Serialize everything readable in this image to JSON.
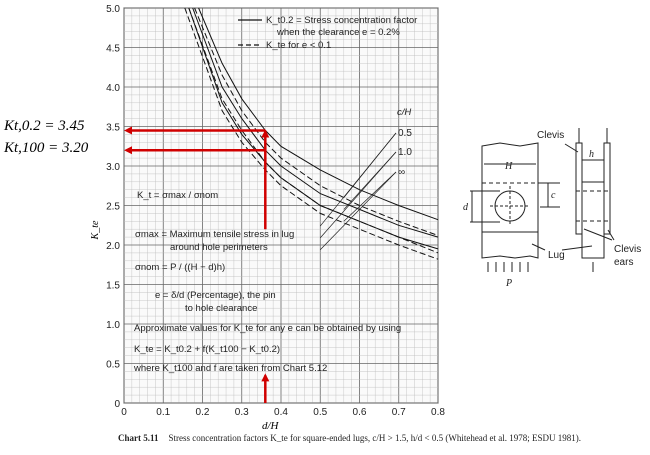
{
  "chart_data": {
    "type": "line",
    "xlabel": "d/H",
    "ylabel": "K_te",
    "xlim": [
      0,
      0.8
    ],
    "ylim": [
      0,
      5.0
    ],
    "x_ticks": [
      "0",
      "0.1",
      "0.2",
      "0.3",
      "0.4",
      "0.5",
      "0.6",
      "0.7",
      "0.8"
    ],
    "y_ticks": [
      "0",
      "0.5",
      "1.0",
      "1.5",
      "2.0",
      "2.5",
      "3.0",
      "3.5",
      "4.0",
      "4.5",
      "5.0"
    ],
    "grid": true,
    "legend": {
      "placement": "top-right",
      "solid": "K_t0.2 = Stress concentration factor",
      "solid_line2": "when the clearance e = 0.2%",
      "dashed": "K_te for e < 0.1"
    },
    "param_label": "c/H",
    "series": [
      {
        "name": "0.5",
        "style": "solid",
        "x": [
          0.19,
          0.25,
          0.3,
          0.36,
          0.4,
          0.5,
          0.6,
          0.7,
          0.8
        ],
        "y": [
          5.0,
          4.3,
          3.85,
          3.45,
          3.25,
          2.95,
          2.7,
          2.5,
          2.32
        ]
      },
      {
        "name": "1.0",
        "style": "solid",
        "x": [
          0.175,
          0.25,
          0.3,
          0.36,
          0.4,
          0.5,
          0.6,
          0.7,
          0.8
        ],
        "y": [
          5.0,
          4.0,
          3.6,
          3.2,
          3.0,
          2.65,
          2.45,
          2.25,
          2.1
        ]
      },
      {
        "name": "∞",
        "style": "solid",
        "x": [
          0.165,
          0.25,
          0.3,
          0.36,
          0.4,
          0.5,
          0.6,
          0.7,
          0.8
        ],
        "y": [
          5.0,
          3.8,
          3.4,
          3.05,
          2.85,
          2.5,
          2.3,
          2.1,
          1.95
        ]
      },
      {
        "name": "0.5",
        "style": "dashed",
        "x": [
          0.18,
          0.25,
          0.3,
          0.36,
          0.4,
          0.5,
          0.6,
          0.7,
          0.8
        ],
        "y": [
          5.0,
          4.15,
          3.7,
          3.3,
          3.1,
          2.75,
          2.5,
          2.3,
          2.12
        ]
      },
      {
        "name": "1.0",
        "style": "dashed",
        "x": [
          0.165,
          0.25,
          0.3,
          0.36,
          0.4,
          0.5,
          0.6,
          0.7,
          0.8
        ],
        "y": [
          5.0,
          3.85,
          3.45,
          3.05,
          2.85,
          2.5,
          2.3,
          2.1,
          1.9
        ]
      },
      {
        "name": "∞",
        "style": "dashed",
        "x": [
          0.155,
          0.25,
          0.3,
          0.36,
          0.4,
          0.5,
          0.6,
          0.7,
          0.8
        ],
        "y": [
          5.0,
          3.7,
          3.3,
          2.95,
          2.75,
          2.4,
          2.2,
          2.0,
          1.82
        ]
      }
    ],
    "annotations": {
      "kt_def": "K_t = σmax / σnom",
      "sigma_max": "σmax = Maximum tensile stress in lug",
      "sigma_max2": "around hole perimeters",
      "sigma_nom": "σnom = P / ((H − d)h)",
      "e_def": "e = δ/d (Percentage), the pin",
      "e_def2": "to hole clearance",
      "approx1": "Approximate values for K_te for any e can be obtained by using",
      "approx2": "K_te = K_t0.2 + f(K_t100 − K_t0.2)",
      "approx3": "where K_t100 and f are taken from Chart 5.12"
    },
    "markers": {
      "d_over_H": 0.36,
      "kt_02": 3.45,
      "kt_100": 3.2,
      "color": "#d00000"
    }
  },
  "left_labels": {
    "kt02": "Kt,0.2 = 3.45",
    "kt100": "Kt,100 = 3.20"
  },
  "diagram": {
    "clevis": "Clevis",
    "clevis2": "Clevis",
    "lug": "Lug",
    "ears1": "Clevis",
    "ears2": "ears",
    "H": "H",
    "h": "h",
    "c": "c",
    "d": "d",
    "P": "P"
  },
  "caption": {
    "number": "Chart 5.11",
    "text": "Stress concentration factors K_te for square-ended lugs, c/H > 1.5, h/d < 0.5 (Whitehead et al. 1978; ESDU 1981)."
  }
}
